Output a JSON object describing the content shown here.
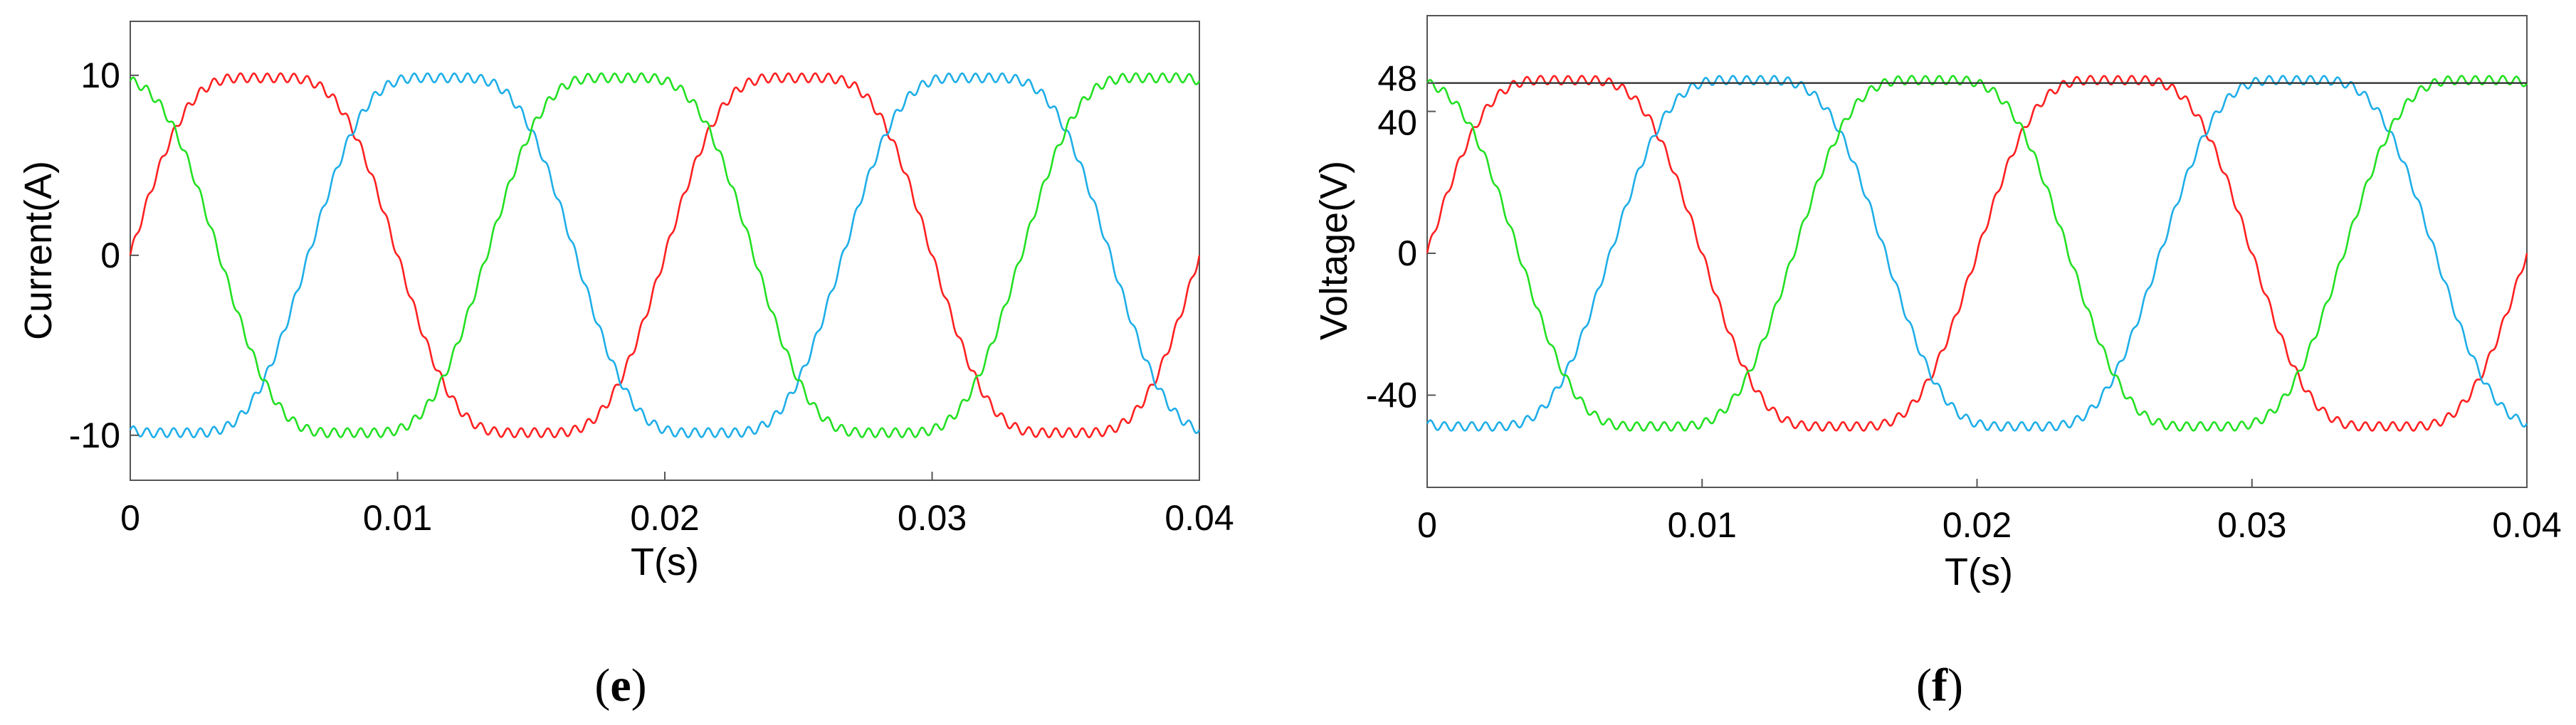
{
  "chart_data": [
    {
      "type": "line",
      "panel_label": "e",
      "xlabel": "T(s)",
      "ylabel": "Current(A)",
      "xlim": [
        0,
        0.04
      ],
      "ylim": [
        -12.5,
        13
      ],
      "xticks": [
        0,
        0.01,
        0.02,
        0.03,
        0.04
      ],
      "xtick_labels": [
        "0",
        "0.01",
        "0.02",
        "0.03",
        "0.04"
      ],
      "yticks": [
        -10,
        0,
        10
      ],
      "ytick_labels": [
        "-10",
        "0",
        "10"
      ],
      "grid": false,
      "legend": "none",
      "waveform": {
        "frequency_hz": 50,
        "amplitude": 10.3,
        "ripple": 0.25
      },
      "series": [
        {
          "phase_deg": 0,
          "color": "#ff2020"
        },
        {
          "phase_deg": -120,
          "color": "#1eaee8"
        },
        {
          "phase_deg": 120,
          "color": "#22e022"
        }
      ]
    },
    {
      "type": "line",
      "panel_label": "f",
      "xlabel": "T(s)",
      "ylabel": "Voltage(V)",
      "xlim": [
        0,
        0.04
      ],
      "ylim": [
        -66,
        67
      ],
      "xticks": [
        0,
        0.01,
        0.02,
        0.03,
        0.04
      ],
      "xtick_labels": [
        "0",
        "0.01",
        "0.02",
        "0.03",
        "0.04"
      ],
      "yticks": [
        -40,
        0,
        40,
        48
      ],
      "ytick_labels": [
        "-40",
        "0",
        "40",
        "48"
      ],
      "grid": false,
      "legend": "none",
      "reference_line": 48,
      "waveform": {
        "frequency_hz": 50,
        "amplitude": 51,
        "ripple": 1.2
      },
      "series": [
        {
          "phase_deg": 0,
          "color": "#ff2020"
        },
        {
          "phase_deg": -120,
          "color": "#1eaee8"
        },
        {
          "phase_deg": 120,
          "color": "#22e022"
        }
      ]
    }
  ]
}
